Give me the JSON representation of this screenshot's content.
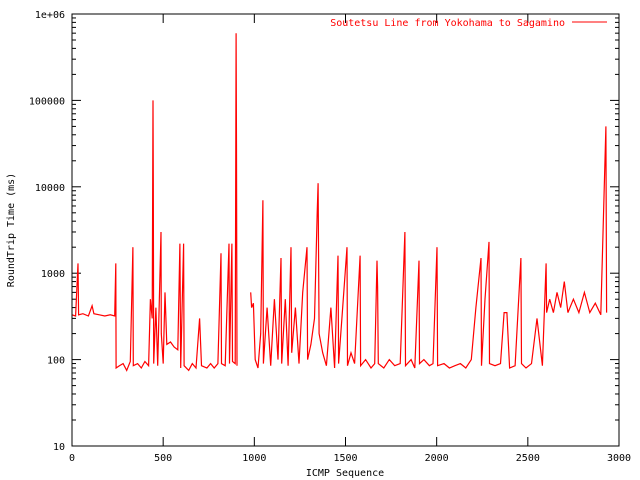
{
  "chart_data": {
    "type": "line",
    "title": "",
    "xlabel": "ICMP Sequence",
    "ylabel": "RoundTrip Time (ms)",
    "xlim": [
      0,
      3000
    ],
    "ylim": [
      10,
      1000000
    ],
    "yscale": "log",
    "grid": false,
    "legend_placement": "top-right",
    "xticks": [
      "0",
      "500",
      "1000",
      "1500",
      "2000",
      "2500",
      "3000"
    ],
    "xtick_values": [
      0,
      500,
      1000,
      1500,
      2000,
      2500,
      3000
    ],
    "yticks": [
      "10",
      "100",
      "1000",
      "10000",
      "100000",
      "1e+06"
    ],
    "ytick_values": [
      10,
      100,
      1000,
      10000,
      100000,
      1000000
    ],
    "series": [
      {
        "name": "Soutetsu Line from Yokohama to Sagamino",
        "color": "#ff0000",
        "points": [
          [
            0,
            330
          ],
          [
            20,
            320
          ],
          [
            33,
            1300
          ],
          [
            36,
            330
          ],
          [
            60,
            340
          ],
          [
            90,
            320
          ],
          [
            110,
            420
          ],
          [
            120,
            340
          ],
          [
            150,
            330
          ],
          [
            180,
            320
          ],
          [
            210,
            330
          ],
          [
            234,
            320
          ],
          [
            240,
            1300
          ],
          [
            242,
            80
          ],
          [
            260,
            85
          ],
          [
            280,
            90
          ],
          [
            300,
            75
          ],
          [
            320,
            95
          ],
          [
            334,
            2000
          ],
          [
            336,
            85
          ],
          [
            360,
            90
          ],
          [
            380,
            80
          ],
          [
            400,
            95
          ],
          [
            420,
            85
          ],
          [
            430,
            500
          ],
          [
            440,
            300
          ],
          [
            444,
            100000
          ],
          [
            446,
            11000
          ],
          [
            448,
            90
          ],
          [
            460,
            400
          ],
          [
            470,
            85
          ],
          [
            488,
            3000
          ],
          [
            490,
            200
          ],
          [
            500,
            90
          ],
          [
            510,
            600
          ],
          [
            520,
            150
          ],
          [
            540,
            160
          ],
          [
            560,
            140
          ],
          [
            580,
            130
          ],
          [
            592,
            2200
          ],
          [
            596,
            80
          ],
          [
            612,
            2200
          ],
          [
            615,
            85
          ],
          [
            640,
            75
          ],
          [
            660,
            90
          ],
          [
            680,
            80
          ],
          [
            700,
            300
          ],
          [
            710,
            85
          ],
          [
            740,
            80
          ],
          [
            760,
            90
          ],
          [
            780,
            80
          ],
          [
            800,
            90
          ],
          [
            817,
            1700
          ],
          [
            820,
            90
          ],
          [
            840,
            85
          ],
          [
            861,
            2200
          ],
          [
            864,
            90
          ],
          [
            877,
            2200
          ],
          [
            880,
            95
          ],
          [
            895,
            90
          ],
          [
            900,
            600000
          ],
          [
            902,
            27000
          ],
          [
            905,
            85
          ],
          null,
          [
            980,
            600
          ],
          [
            985,
            400
          ],
          [
            995,
            450
          ],
          [
            1005,
            100
          ],
          [
            1020,
            80
          ],
          [
            1035,
            200
          ],
          [
            1047,
            7000
          ],
          [
            1050,
            90
          ],
          [
            1070,
            400
          ],
          [
            1090,
            85
          ],
          [
            1110,
            500
          ],
          [
            1130,
            100
          ],
          [
            1146,
            1500
          ],
          [
            1150,
            90
          ],
          [
            1170,
            500
          ],
          [
            1185,
            85
          ],
          [
            1201,
            2000
          ],
          [
            1205,
            120
          ],
          [
            1225,
            400
          ],
          [
            1245,
            90
          ],
          [
            1265,
            600
          ],
          [
            1289,
            2000
          ],
          [
            1292,
            100
          ],
          [
            1310,
            150
          ],
          [
            1330,
            300
          ],
          [
            1345,
            5000
          ],
          [
            1350,
            11000
          ],
          [
            1355,
            200
          ],
          [
            1375,
            120
          ],
          [
            1395,
            85
          ],
          [
            1420,
            400
          ],
          [
            1440,
            80
          ],
          [
            1459,
            1600
          ],
          [
            1462,
            90
          ],
          [
            1480,
            300
          ],
          [
            1508,
            2000
          ],
          [
            1511,
            85
          ],
          [
            1530,
            120
          ],
          [
            1550,
            90
          ],
          [
            1580,
            1600
          ],
          [
            1583,
            85
          ],
          [
            1610,
            100
          ],
          [
            1640,
            80
          ],
          [
            1660,
            90
          ],
          [
            1673,
            1400
          ],
          [
            1676,
            700
          ],
          [
            1680,
            90
          ],
          [
            1710,
            80
          ],
          [
            1740,
            100
          ],
          [
            1770,
            85
          ],
          [
            1800,
            90
          ],
          [
            1826,
            3000
          ],
          [
            1829,
            85
          ],
          [
            1860,
            100
          ],
          [
            1880,
            80
          ],
          [
            1903,
            1400
          ],
          [
            1906,
            90
          ],
          [
            1930,
            100
          ],
          [
            1960,
            85
          ],
          [
            1980,
            90
          ],
          [
            2002,
            2000
          ],
          [
            2005,
            85
          ],
          [
            2040,
            90
          ],
          [
            2070,
            80
          ],
          [
            2100,
            85
          ],
          [
            2130,
            90
          ],
          [
            2160,
            80
          ],
          [
            2190,
            100
          ],
          [
            2215,
            400
          ],
          [
            2243,
            1500
          ],
          [
            2246,
            85
          ],
          [
            2265,
            500
          ],
          [
            2287,
            2300
          ],
          [
            2290,
            90
          ],
          [
            2320,
            85
          ],
          [
            2350,
            90
          ],
          [
            2370,
            350
          ],
          [
            2385,
            350
          ],
          [
            2400,
            80
          ],
          [
            2430,
            85
          ],
          [
            2462,
            1500
          ],
          [
            2465,
            90
          ],
          [
            2490,
            80
          ],
          [
            2520,
            90
          ],
          [
            2550,
            300
          ],
          [
            2580,
            85
          ],
          [
            2600,
            1300
          ],
          [
            2603,
            350
          ],
          [
            2620,
            500
          ],
          [
            2640,
            350
          ],
          [
            2660,
            600
          ],
          [
            2680,
            400
          ],
          [
            2700,
            800
          ],
          [
            2720,
            350
          ],
          [
            2750,
            500
          ],
          [
            2780,
            350
          ],
          [
            2810,
            600
          ],
          [
            2840,
            350
          ],
          [
            2870,
            450
          ],
          [
            2900,
            330
          ],
          [
            2928,
            50000
          ],
          [
            2932,
            350
          ]
        ]
      }
    ]
  }
}
